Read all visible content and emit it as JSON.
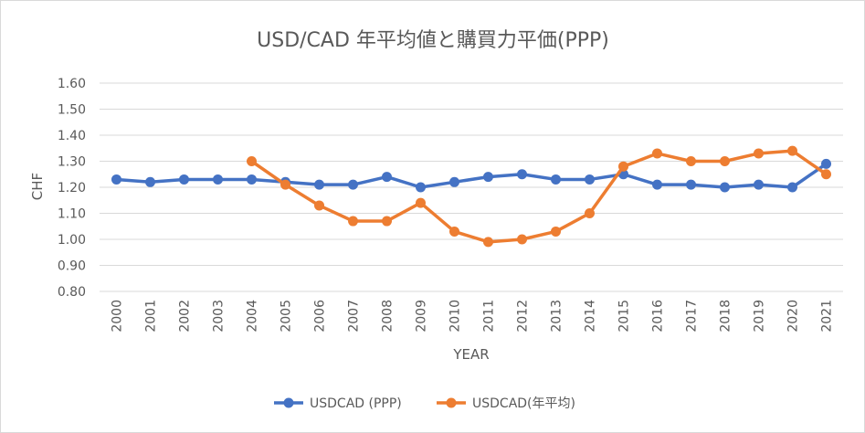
{
  "chart_data": {
    "type": "line",
    "title": "USD/CAD 年平均値と購買力平価(PPP)",
    "xlabel": "YEAR",
    "ylabel": "CHF",
    "ylim": [
      0.8,
      1.6
    ],
    "yticks": [
      "1.60",
      "1.50",
      "1.40",
      "1.30",
      "1.20",
      "1.10",
      "1.00",
      "0.90",
      "0.80"
    ],
    "ytick_values": [
      1.6,
      1.5,
      1.4,
      1.3,
      1.2,
      1.1,
      1.0,
      0.9,
      0.8
    ],
    "grid": true,
    "legend_position": "bottom",
    "categories": [
      "2000",
      "2001",
      "2002",
      "2003",
      "2004",
      "2005",
      "2006",
      "2007",
      "2008",
      "2009",
      "2010",
      "2011",
      "2012",
      "2013",
      "2014",
      "2015",
      "2016",
      "2017",
      "2018",
      "2019",
      "2020",
      "2021"
    ],
    "series": [
      {
        "name": "USDCAD (PPP)",
        "color": "#4472c4",
        "values": [
          1.23,
          1.22,
          1.23,
          1.23,
          1.23,
          1.22,
          1.21,
          1.21,
          1.24,
          1.2,
          1.22,
          1.24,
          1.25,
          1.23,
          1.23,
          1.25,
          1.21,
          1.21,
          1.2,
          1.21,
          1.2,
          1.29
        ]
      },
      {
        "name": "USDCAD(年平均)",
        "color": "#ed7d31",
        "values": [
          null,
          null,
          null,
          null,
          1.3,
          1.21,
          1.13,
          1.07,
          1.07,
          1.14,
          1.03,
          0.99,
          1.0,
          1.03,
          1.1,
          1.28,
          1.33,
          1.3,
          1.3,
          1.33,
          1.34,
          1.25
        ]
      }
    ]
  }
}
